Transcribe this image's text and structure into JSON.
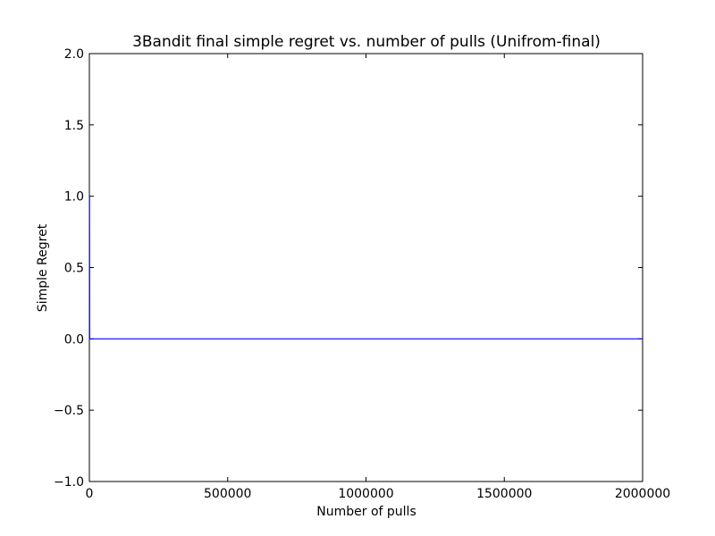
{
  "chart_data": {
    "type": "line",
    "title": "3Bandit final simple regret vs. number of pulls (Unifrom-final)",
    "xlabel": "Number of pulls",
    "ylabel": "Simple Regret",
    "xlim": [
      0,
      2000000
    ],
    "ylim": [
      -1.0,
      2.0
    ],
    "xticks": [
      0,
      500000,
      1000000,
      1500000,
      2000000
    ],
    "xtick_labels": [
      "0",
      "500000",
      "1000000",
      "1500000",
      "2000000"
    ],
    "yticks": [
      -1.0,
      -0.5,
      0.0,
      0.5,
      1.0,
      1.5,
      2.0
    ],
    "ytick_labels": [
      "−1.0",
      "−0.5",
      "0.0",
      "0.5",
      "1.0",
      "1.5",
      "2.0"
    ],
    "grid": false,
    "series": [
      {
        "color": "#0000ff",
        "x": [
          0,
          500,
          1000,
          2000,
          5000,
          10000,
          500000,
          1000000,
          1500000,
          2000000
        ],
        "y": [
          1.0,
          1.0,
          0.0,
          0.0,
          0.0,
          0.0,
          0.0,
          0.0,
          0.0,
          0.0
        ]
      }
    ]
  }
}
